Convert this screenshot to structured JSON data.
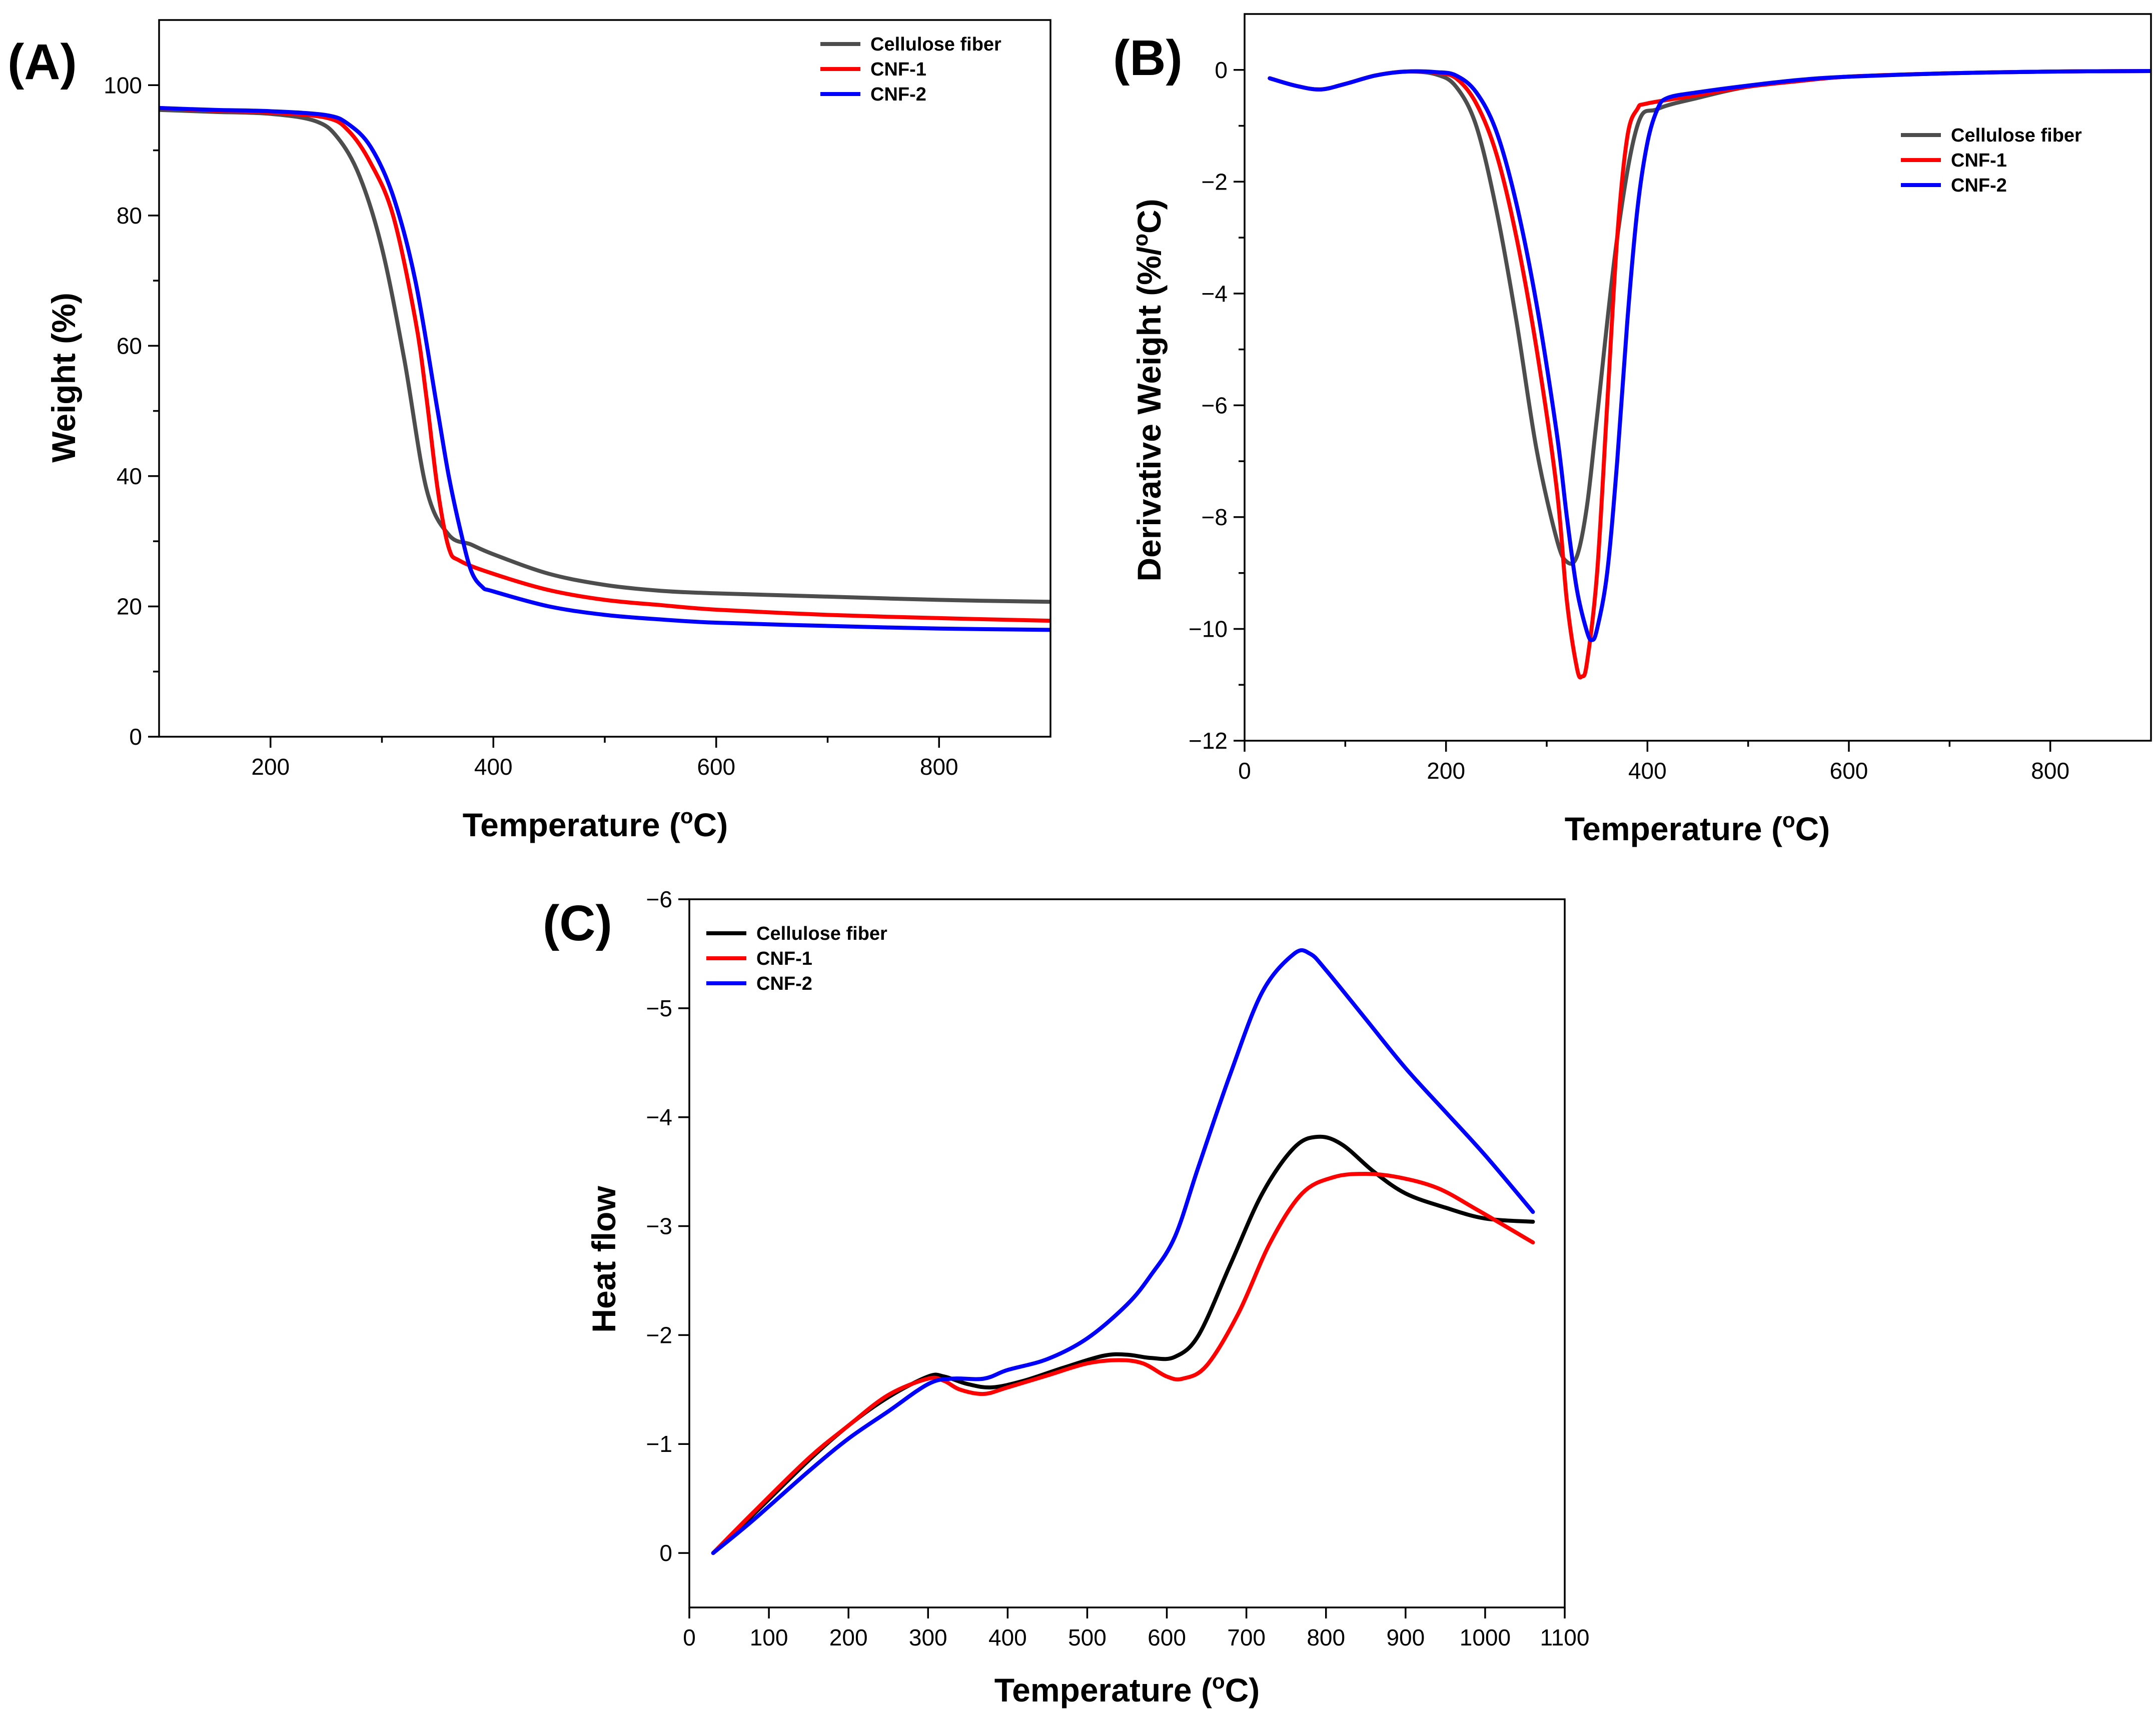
{
  "figure": {
    "panels": [
      {
        "id": "A",
        "letter": "(A)"
      },
      {
        "id": "B",
        "letter": "(B)"
      },
      {
        "id": "C",
        "letter": "(C)"
      }
    ]
  },
  "chart_data": [
    {
      "id": "A",
      "type": "line",
      "title": "",
      "xlabel": "Temperature (°C)",
      "ylabel": "Weight (%)",
      "xlim": [
        100,
        900
      ],
      "ylim": [
        0,
        110
      ],
      "xticks": [
        200,
        400,
        600,
        800
      ],
      "yticks": [
        0,
        20,
        40,
        60,
        80,
        100
      ],
      "legend_position": "top-right",
      "series": [
        {
          "name": "Cellulose fiber",
          "color": "#4d4d4d",
          "x": [
            100,
            150,
            200,
            240,
            260,
            280,
            300,
            320,
            340,
            360,
            380,
            400,
            450,
            500,
            550,
            600,
            700,
            800,
            900
          ],
          "y": [
            96.2,
            95.9,
            95.6,
            94.5,
            92,
            86,
            75,
            58,
            38,
            31,
            29.5,
            28,
            25,
            23.3,
            22.4,
            22,
            21.5,
            21,
            20.7
          ]
        },
        {
          "name": "CNF-1",
          "color": "#ff0000",
          "x": [
            100,
            150,
            200,
            250,
            270,
            290,
            310,
            330,
            340,
            350,
            360,
            370,
            400,
            450,
            500,
            550,
            600,
            700,
            800,
            900
          ],
          "y": [
            96.5,
            96.1,
            95.8,
            95,
            93,
            88,
            80,
            64,
            52,
            38,
            29,
            27,
            25,
            22.5,
            21,
            20.2,
            19.5,
            18.7,
            18.2,
            17.8
          ]
        },
        {
          "name": "CNF-2",
          "color": "#0000ff",
          "x": [
            100,
            150,
            200,
            250,
            270,
            290,
            310,
            330,
            350,
            360,
            370,
            380,
            390,
            400,
            450,
            500,
            550,
            600,
            700,
            800,
            900
          ],
          "y": [
            96.5,
            96.2,
            96,
            95.4,
            94,
            90.5,
            83,
            70,
            50,
            40,
            32,
            25.5,
            23,
            22.3,
            20,
            18.7,
            18,
            17.5,
            17,
            16.6,
            16.4
          ]
        }
      ]
    },
    {
      "id": "B",
      "type": "line",
      "title": "",
      "xlabel": "Temperature (°C)",
      "ylabel": "Derivative Weight (%/°C)",
      "xlim": [
        0,
        900
      ],
      "ylim": [
        -12,
        1
      ],
      "xticks": [
        0,
        200,
        400,
        600,
        800
      ],
      "yticks": [
        0,
        -2,
        -4,
        -6,
        -8,
        -10,
        -12
      ],
      "legend_position": "right",
      "series": [
        {
          "name": "Cellulose fiber",
          "color": "#4d4d4d",
          "x": [
            25,
            50,
            75,
            100,
            130,
            160,
            190,
            210,
            230,
            250,
            270,
            290,
            310,
            320,
            330,
            340,
            350,
            370,
            390,
            410,
            450,
            500,
            550,
            600,
            700,
            800,
            900
          ],
          "y": [
            -0.15,
            -0.28,
            -0.35,
            -0.25,
            -0.1,
            -0.03,
            -0.08,
            -0.3,
            -1,
            -2.5,
            -4.5,
            -6.8,
            -8.4,
            -8.8,
            -8.7,
            -7.8,
            -6.2,
            -3,
            -1,
            -0.7,
            -0.5,
            -0.3,
            -0.2,
            -0.12,
            -0.06,
            -0.03,
            -0.02
          ]
        },
        {
          "name": "CNF-1",
          "color": "#ff0000",
          "x": [
            25,
            50,
            75,
            100,
            130,
            160,
            190,
            210,
            230,
            250,
            270,
            290,
            310,
            320,
            330,
            335,
            340,
            350,
            360,
            370,
            380,
            390,
            400,
            450,
            500,
            550,
            600,
            700,
            800,
            900
          ],
          "y": [
            -0.15,
            -0.28,
            -0.35,
            -0.25,
            -0.1,
            -0.03,
            -0.05,
            -0.15,
            -0.6,
            -1.5,
            -3,
            -5,
            -7.5,
            -9.5,
            -10.7,
            -10.85,
            -10.6,
            -9,
            -6,
            -3,
            -1.2,
            -0.7,
            -0.6,
            -0.45,
            -0.3,
            -0.2,
            -0.12,
            -0.06,
            -0.03,
            -0.02
          ]
        },
        {
          "name": "CNF-2",
          "color": "#0000ff",
          "x": [
            25,
            50,
            75,
            100,
            130,
            160,
            190,
            210,
            230,
            250,
            270,
            290,
            310,
            320,
            330,
            340,
            345,
            350,
            360,
            370,
            380,
            390,
            400,
            410,
            420,
            450,
            500,
            550,
            600,
            700,
            800,
            900
          ],
          "y": [
            -0.15,
            -0.28,
            -0.35,
            -0.25,
            -0.1,
            -0.03,
            -0.04,
            -0.1,
            -0.4,
            -1.1,
            -2.4,
            -4.2,
            -6.5,
            -8,
            -9.3,
            -10.05,
            -10.2,
            -10,
            -9,
            -7,
            -4.5,
            -2.5,
            -1.3,
            -0.7,
            -0.5,
            -0.4,
            -0.28,
            -0.18,
            -0.12,
            -0.06,
            -0.03,
            -0.02
          ]
        }
      ]
    },
    {
      "id": "C",
      "type": "line",
      "title": "",
      "xlabel": "Temperature (°C)",
      "ylabel": "Heat flow",
      "xlim": [
        0,
        1100
      ],
      "ylim": [
        0.5,
        -6
      ],
      "xticks": [
        0,
        100,
        200,
        300,
        400,
        500,
        600,
        700,
        800,
        900,
        1000,
        1100
      ],
      "yticks": [
        0,
        -1,
        -2,
        -3,
        -4,
        -5,
        -6
      ],
      "legend_position": "top-left",
      "series": [
        {
          "name": "Cellulose fiber",
          "color": "#000000",
          "x": [
            30,
            80,
            150,
            200,
            250,
            300,
            320,
            350,
            380,
            420,
            470,
            520,
            550,
            580,
            610,
            640,
            680,
            720,
            760,
            790,
            820,
            860,
            900,
            950,
            1000,
            1060
          ],
          "y": [
            0,
            -0.35,
            -0.85,
            -1.17,
            -1.43,
            -1.62,
            -1.62,
            -1.55,
            -1.52,
            -1.58,
            -1.7,
            -1.81,
            -1.82,
            -1.79,
            -1.8,
            -2,
            -2.65,
            -3.3,
            -3.72,
            -3.82,
            -3.75,
            -3.5,
            -3.3,
            -3.17,
            -3.07,
            -3.04
          ]
        },
        {
          "name": "CNF-1",
          "color": "#ff0000",
          "x": [
            30,
            80,
            150,
            200,
            250,
            300,
            320,
            340,
            370,
            400,
            450,
            500,
            540,
            570,
            600,
            620,
            650,
            690,
            730,
            770,
            810,
            850,
            890,
            940,
            990,
            1060
          ],
          "y": [
            0,
            -0.37,
            -0.87,
            -1.17,
            -1.45,
            -1.6,
            -1.58,
            -1.5,
            -1.46,
            -1.52,
            -1.63,
            -1.74,
            -1.77,
            -1.74,
            -1.62,
            -1.6,
            -1.72,
            -2.2,
            -2.85,
            -3.3,
            -3.45,
            -3.48,
            -3.45,
            -3.35,
            -3.15,
            -2.85
          ]
        },
        {
          "name": "CNF-2",
          "color": "#0000ff",
          "x": [
            30,
            80,
            150,
            200,
            250,
            300,
            330,
            370,
            400,
            450,
            500,
            550,
            580,
            610,
            640,
            680,
            720,
            760,
            780,
            800,
            850,
            900,
            950,
            1000,
            1060
          ],
          "y": [
            0,
            -0.3,
            -0.75,
            -1.05,
            -1.3,
            -1.55,
            -1.6,
            -1.6,
            -1.68,
            -1.78,
            -1.97,
            -2.28,
            -2.55,
            -2.9,
            -3.55,
            -4.4,
            -5.15,
            -5.5,
            -5.5,
            -5.35,
            -4.9,
            -4.45,
            -4.05,
            -3.65,
            -3.13
          ]
        }
      ]
    }
  ]
}
